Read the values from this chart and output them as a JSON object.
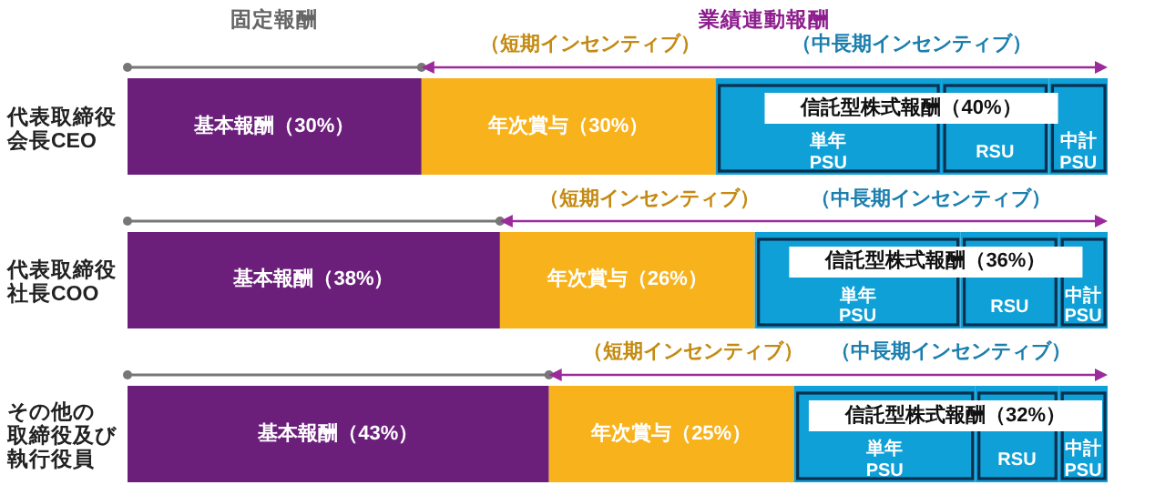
{
  "chart_data": {
    "type": "bar",
    "orientation": "horizontal",
    "stacked": true,
    "categories": [
      "代表取締役会長CEO",
      "代表取締役社長COO",
      "その他の取締役及び執行役員"
    ],
    "series": [
      {
        "color": "#6b1f7b",
        "values": [
          30,
          38,
          43
        ],
        "value_labels": [
          "基本報酬（30%）",
          "基本報酬（38%）",
          "基本報酬（43%）"
        ]
      },
      {
        "color": "#f8b21c",
        "values": [
          30,
          26,
          25
        ],
        "value_labels": [
          "年次賞与（30%）",
          "年次賞与（26%）",
          "年次賞与（25%）"
        ]
      },
      {
        "color": "#0ea0d6",
        "values": [
          23,
          21,
          18.5
        ],
        "value_labels": [
          "単年PSU",
          "単年PSU",
          "単年PSU"
        ]
      },
      {
        "color": "#0ea0d6",
        "values": [
          11,
          10,
          8.5
        ],
        "value_labels": [
          "RSU",
          "RSU",
          "RSU"
        ]
      },
      {
        "color": "#0ea0d6",
        "values": [
          6,
          5,
          5
        ],
        "value_labels": [
          "中計PSU",
          "中計PSU",
          "中計PSU"
        ]
      }
    ],
    "annotations": [
      "固定報酬",
      "業績連動報酬",
      "（短期インセンティブ）",
      "（中長期インセンティブ）",
      "信託型株式報酬（40%）",
      "（短期インセンティブ）",
      "（中長期インセンティブ）",
      "信託型株式報酬（36%）",
      "（短期インセンティブ）",
      "（中長期インセンティブ）",
      "信託型株式報酬（32%）"
    ]
  }
}
